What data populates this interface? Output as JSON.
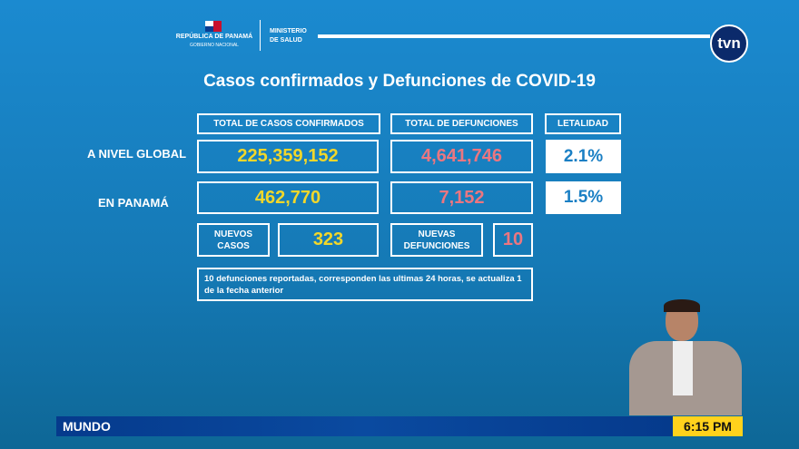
{
  "header": {
    "gov_name": "REPÚBLICA DE PANAMÁ",
    "gov_sub": "GOBIERNO NACIONAL",
    "ministry_line1": "MINISTERIO",
    "ministry_line2": "DE SALUD",
    "channel_logo": "tvn"
  },
  "title": "Casos confirmados y Defunciones de COVID-19",
  "columns": {
    "cases": "TOTAL DE CASOS CONFIRMADOS",
    "deaths": "TOTAL DE DEFUNCIONES",
    "lethality": "LETALIDAD"
  },
  "rows": [
    {
      "label": "A NIVEL GLOBAL",
      "cases": "225,359,152",
      "deaths": "4,641,746",
      "lethality": "2.1%"
    },
    {
      "label": "EN PANAMÁ",
      "cases": "462,770",
      "deaths": "7,152",
      "lethality": "1.5%"
    }
  ],
  "new": {
    "cases_label_1": "NUEVOS",
    "cases_label_2": "CASOS",
    "cases": "323",
    "deaths_label_1": "NUEVAS",
    "deaths_label_2": "DEFUNCIONES",
    "deaths": "10"
  },
  "note": "10 defunciones reportadas, corresponden las ultimas 24 horas, se actualiza 1 de la fecha anterior",
  "ticker": {
    "section": "MUNDO",
    "time": "6:15 PM"
  },
  "colors": {
    "cases": "#f2d72a",
    "deaths": "#ec7680",
    "ticker": "#053a8c",
    "time_bg": "#ffd21c"
  }
}
